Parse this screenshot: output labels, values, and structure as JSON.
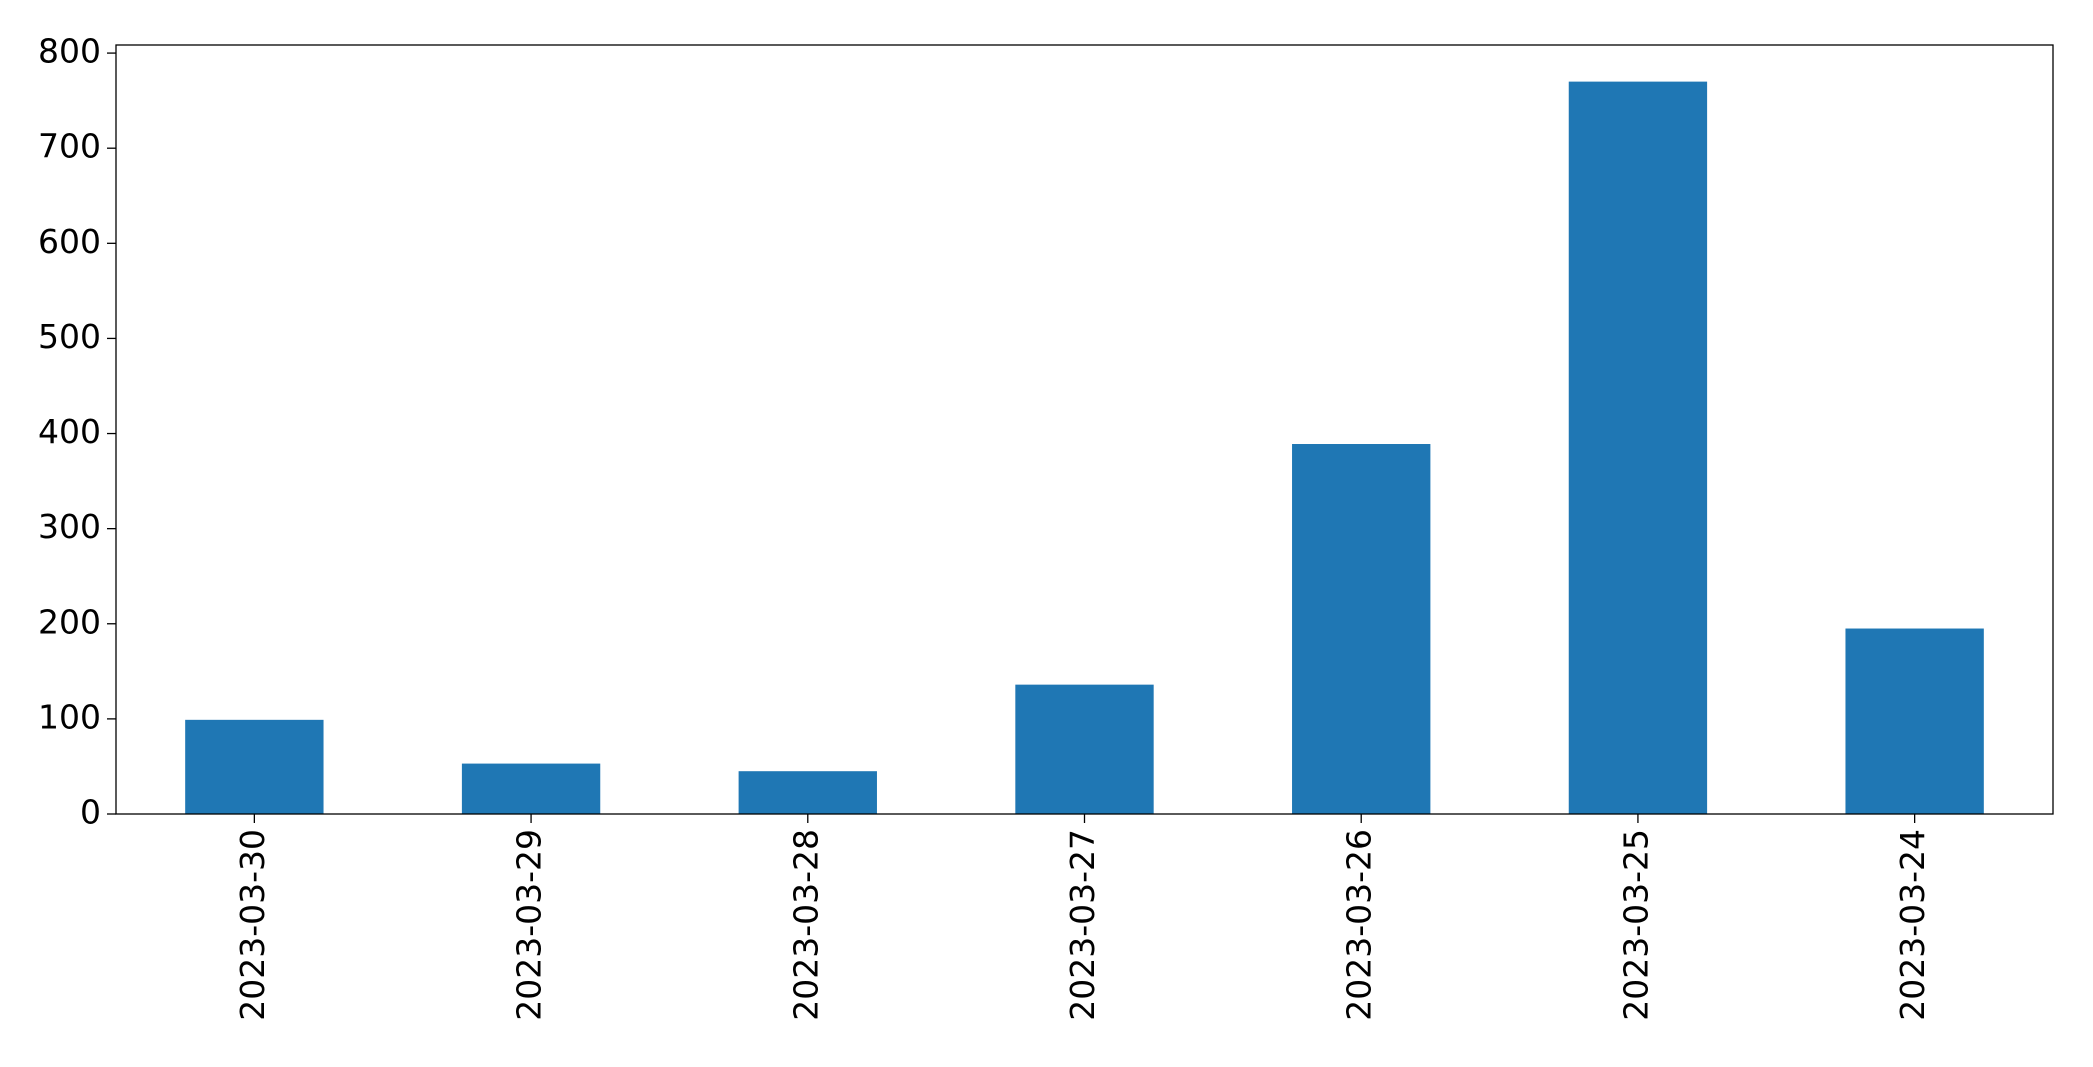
{
  "chart_data": {
    "type": "bar",
    "categories": [
      "2023-03-30",
      "2023-03-29",
      "2023-03-28",
      "2023-03-27",
      "2023-03-26",
      "2023-03-25",
      "2023-03-24"
    ],
    "values": [
      99,
      53,
      45,
      136,
      389,
      770,
      195
    ],
    "color": "#1f77b4",
    "ylim": [
      0,
      808.5
    ],
    "yticks": [
      0,
      100,
      200,
      300,
      400,
      500,
      600,
      700,
      800
    ],
    "grid": false
  }
}
